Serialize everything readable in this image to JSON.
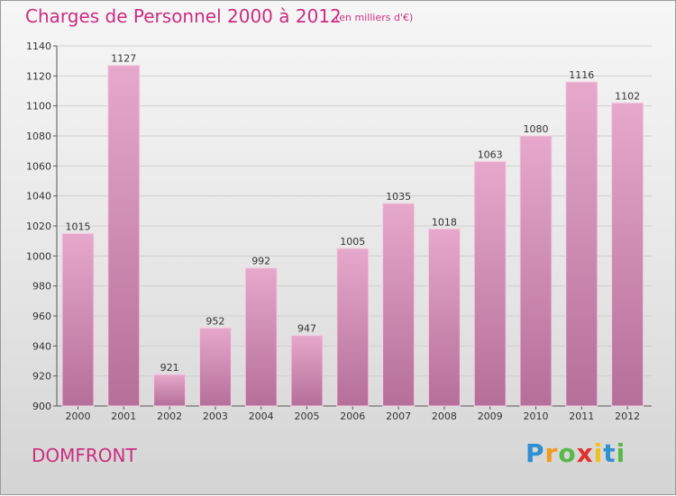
{
  "header": {
    "title": "Charges de Personnel 2000 à 2012",
    "subtitle": "(en milliers d'€)"
  },
  "footer": {
    "place": "DOMFRONT",
    "brand": "Proxiti"
  },
  "colors": {
    "accent": "#cc2d80",
    "bar_top": "#e6a8cb",
    "bar_bottom": "#b56f99"
  },
  "chart_data": {
    "type": "bar",
    "title": "Charges de Personnel 2000 à 2012",
    "subtitle": "(en milliers d'€)",
    "categories": [
      "2000",
      "2001",
      "2002",
      "2003",
      "2004",
      "2005",
      "2006",
      "2007",
      "2008",
      "2009",
      "2010",
      "2011",
      "2012"
    ],
    "values": [
      1015,
      1127,
      921,
      952,
      992,
      947,
      1005,
      1035,
      1018,
      1063,
      1080,
      1116,
      1102
    ],
    "data_labels": [
      "1015",
      "1127",
      "921",
      "952",
      "992",
      "947",
      "1005",
      "1035",
      "1018",
      "1063",
      "1080",
      "1116",
      "1102"
    ],
    "ylim": [
      900,
      1140
    ],
    "yticks": [
      900,
      920,
      940,
      960,
      980,
      1000,
      1020,
      1040,
      1060,
      1080,
      1100,
      1120,
      1140
    ],
    "grid": true,
    "xlabel": "",
    "ylabel": ""
  }
}
